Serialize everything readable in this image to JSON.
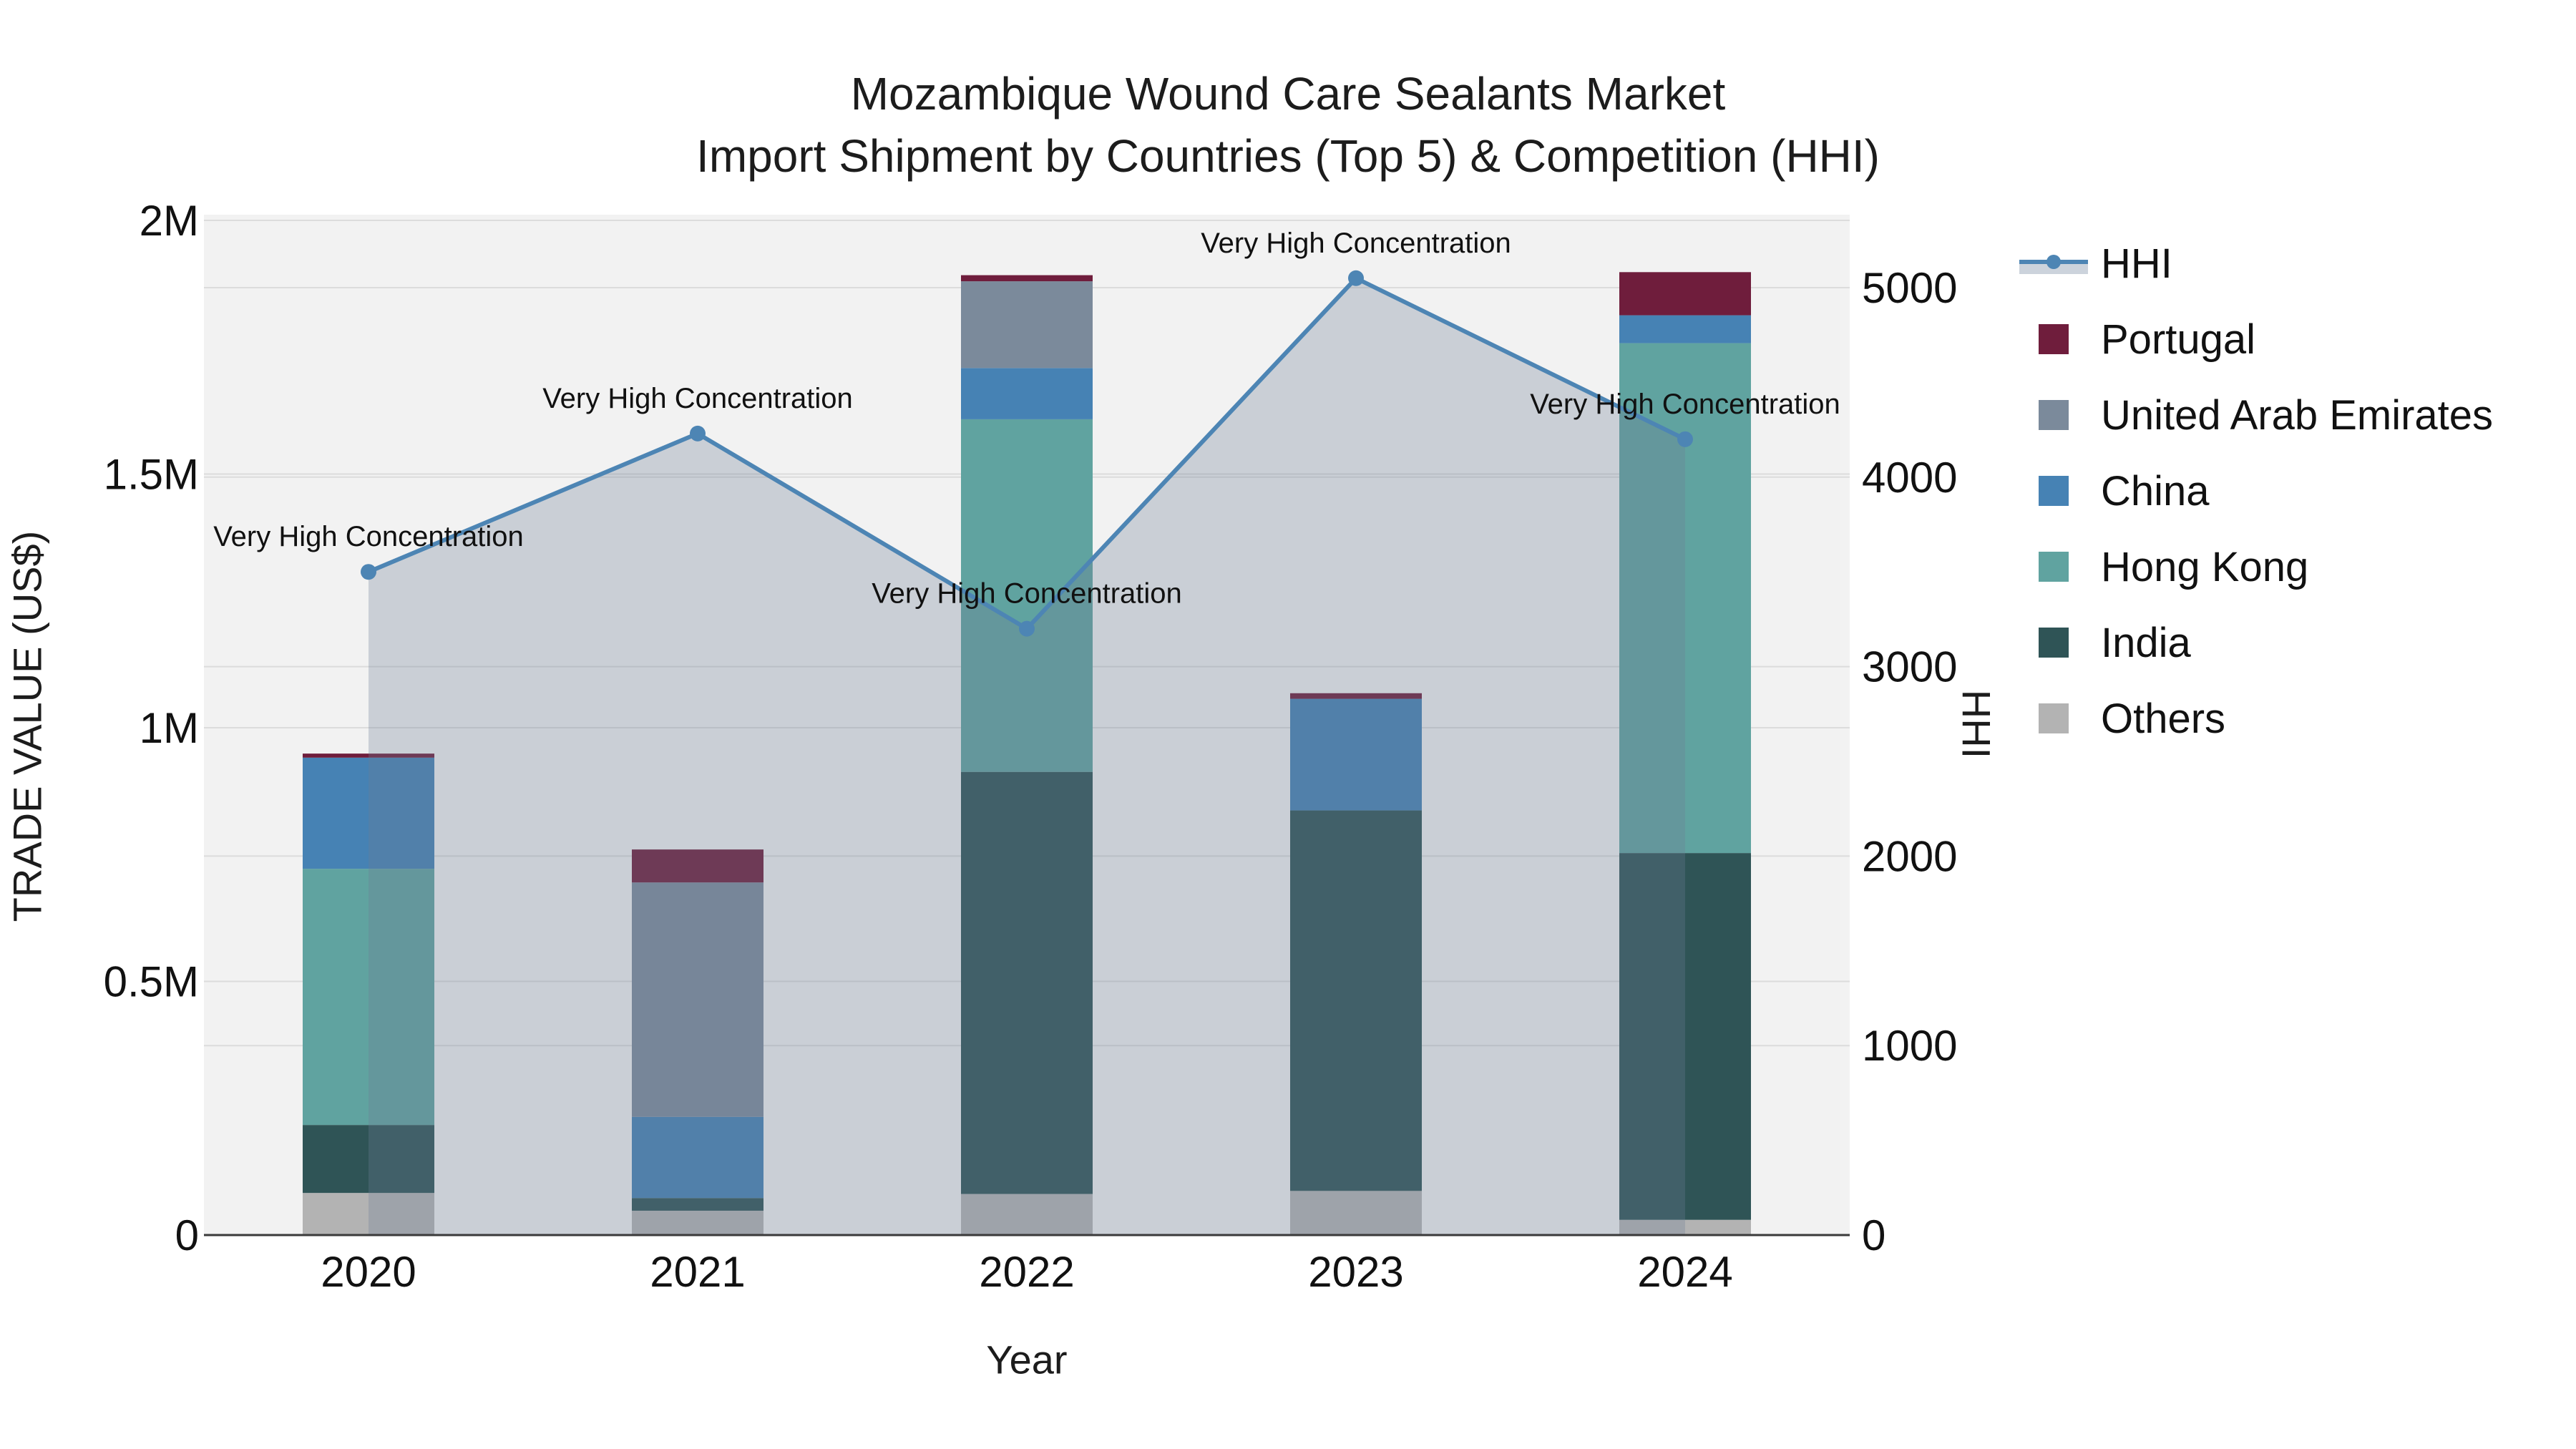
{
  "title": {
    "line1": "Mozambique Wound Care Sealants Market",
    "line2": "Import Shipment by Countries (Top 5) & Competition (HHI)"
  },
  "axes": {
    "x": {
      "title": "Year",
      "categories": [
        "2020",
        "2021",
        "2022",
        "2023",
        "2024"
      ]
    },
    "y_left": {
      "title": "TRADE VALUE (US$)",
      "tick_labels": [
        "0",
        "0.5M",
        "1M",
        "1.5M",
        "2M"
      ],
      "tick_values": [
        0,
        500000,
        1000000,
        1500000,
        2000000
      ]
    },
    "y_right": {
      "title": "HHI",
      "tick_labels": [
        "0",
        "1000",
        "2000",
        "3000",
        "4000",
        "5000"
      ],
      "tick_values": [
        0,
        1000,
        2000,
        3000,
        4000,
        5000
      ]
    }
  },
  "colors": {
    "plot_bg": "#f2f2f2",
    "grid": "#dcdcdc",
    "axis_line": "#3a3a3a",
    "text": "#111111",
    "hhi_line": "#4d85b4",
    "hhi_area": "rgba(110,126,148,0.30)",
    "hhi_legend_band": "#ccd3dc",
    "portugal": "#6f1d3c",
    "united_arab_emirates": "#7b8a9b",
    "china": "#4682b4",
    "hong_kong": "#60a3a0",
    "india": "#2f5456",
    "others": "#b3b3b3"
  },
  "legend": {
    "items": [
      {
        "label": "HHI",
        "type": "line",
        "color": "#4d85b4"
      },
      {
        "label": "Portugal",
        "type": "swatch",
        "color": "#6f1d3c"
      },
      {
        "label": "United Arab Emirates",
        "type": "swatch",
        "color": "#7b8a9b"
      },
      {
        "label": "China",
        "type": "swatch",
        "color": "#4682b4"
      },
      {
        "label": "Hong Kong",
        "type": "swatch",
        "color": "#60a3a0"
      },
      {
        "label": "India",
        "type": "swatch",
        "color": "#2f5456"
      },
      {
        "label": "Others",
        "type": "swatch",
        "color": "#b3b3b3"
      }
    ]
  },
  "chart_data": {
    "type": "bar+line",
    "title": "Mozambique Wound Care Sealants Market — Import Shipment by Countries (Top 5) & Competition (HHI)",
    "xlabel": "Year",
    "ylabel_left": "TRADE VALUE (US$)",
    "ylabel_right": "HHI",
    "categories": [
      "2020",
      "2021",
      "2022",
      "2023",
      "2024"
    ],
    "y_left_max": 2000000,
    "y_right_plot_max": 5355,
    "grid": true,
    "legend_position": "right",
    "bar_series": [
      {
        "name": "Others",
        "color": "#b3b3b3",
        "values": [
          83000,
          48000,
          81000,
          87000,
          30000
        ]
      },
      {
        "name": "India",
        "color": "#2f5456",
        "values": [
          134000,
          25000,
          832000,
          750000,
          723000
        ]
      },
      {
        "name": "Hong Kong",
        "color": "#60a3a0",
        "values": [
          505000,
          0,
          695000,
          0,
          1005000
        ]
      },
      {
        "name": "China",
        "color": "#4682b4",
        "values": [
          219000,
          160000,
          101000,
          220000,
          55000
        ]
      },
      {
        "name": "United Arab Emirates",
        "color": "#7b8a9b",
        "values": [
          0,
          462000,
          171000,
          0,
          0
        ]
      },
      {
        "name": "Portugal",
        "color": "#6f1d3c",
        "values": [
          8000,
          65000,
          12000,
          11000,
          85000
        ]
      }
    ],
    "bar_totals": [
      949000,
      760000,
      1892000,
      1068000,
      1898000
    ],
    "line_series": {
      "name": "HHI",
      "axis": "right",
      "color": "#4d85b4",
      "fill": "tozeroy",
      "values": [
        3500,
        4230,
        3200,
        5050,
        4200
      ]
    },
    "annotations": [
      "Very High Concentration",
      "Very High Concentration",
      "Very High Concentration",
      "Very High Concentration",
      "Very High Concentration"
    ]
  }
}
